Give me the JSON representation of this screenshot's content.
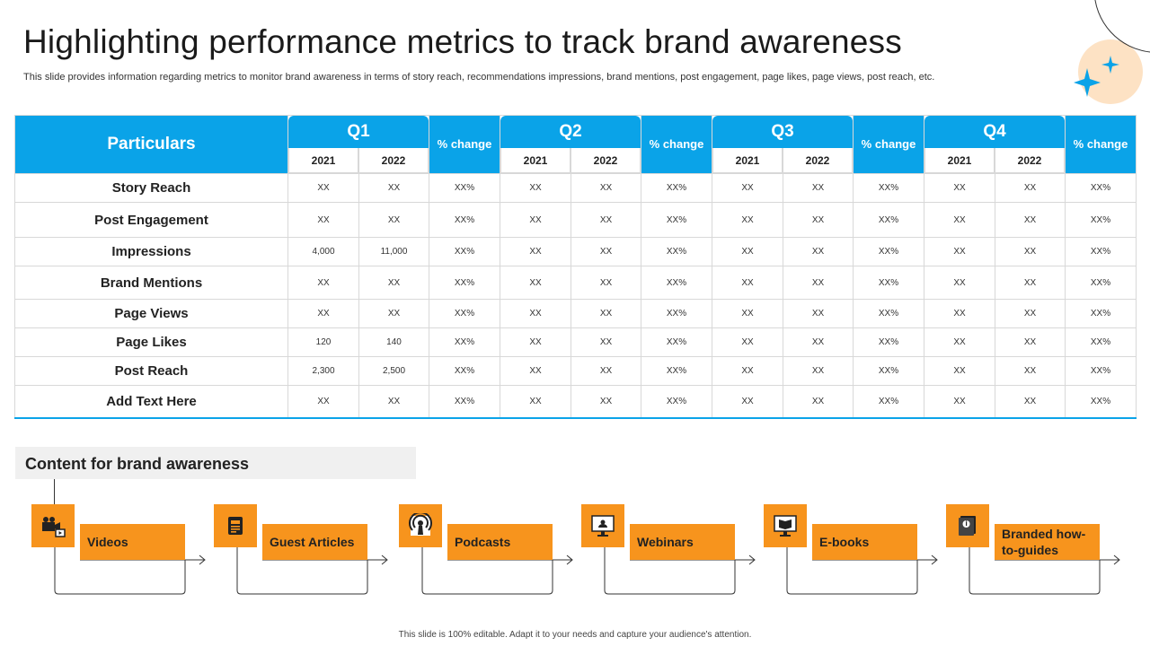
{
  "title": "Highlighting performance metrics to track brand awareness",
  "subtitle": "This slide provides information regarding metrics to monitor brand awareness in terms of story reach, recommendations impressions, brand mentions, post engagement, page likes, page views, post reach, etc.",
  "colors": {
    "accent": "#0aa3e8",
    "orange": "#f7941d",
    "peach": "#fde2c4"
  },
  "table": {
    "particulars_label": "Particulars",
    "quarters": [
      {
        "label": "Q1",
        "years": [
          "2021",
          "2022"
        ],
        "pct_label": "% change"
      },
      {
        "label": "Q2",
        "years": [
          "2021",
          "2022"
        ],
        "pct_label": "% change"
      },
      {
        "label": "Q3",
        "years": [
          "2021",
          "2022"
        ],
        "pct_label": "% change"
      },
      {
        "label": "Q4",
        "years": [
          "2021",
          "2022"
        ],
        "pct_label": "% change"
      }
    ],
    "rows": [
      {
        "label": "Story Reach",
        "values": [
          "XX",
          "XX",
          "XX%",
          "XX",
          "XX",
          "XX%",
          "XX",
          "XX",
          "XX%",
          "XX",
          "XX",
          "XX%"
        ]
      },
      {
        "label": "Post Engagement",
        "values": [
          "XX",
          "XX",
          "XX%",
          "XX",
          "XX",
          "XX%",
          "XX",
          "XX",
          "XX%",
          "XX",
          "XX",
          "XX%"
        ]
      },
      {
        "label": "Impressions",
        "values": [
          "4,000",
          "11,000",
          "XX%",
          "XX",
          "XX",
          "XX%",
          "XX",
          "XX",
          "XX%",
          "XX",
          "XX",
          "XX%"
        ]
      },
      {
        "label": "Brand  Mentions",
        "values": [
          "XX",
          "XX",
          "XX%",
          "XX",
          "XX",
          "XX%",
          "XX",
          "XX",
          "XX%",
          "XX",
          "XX",
          "XX%"
        ]
      },
      {
        "label": "Page Views",
        "values": [
          "XX",
          "XX",
          "XX%",
          "XX",
          "XX",
          "XX%",
          "XX",
          "XX",
          "XX%",
          "XX",
          "XX",
          "XX%"
        ]
      },
      {
        "label": "Page Likes",
        "values": [
          "120",
          "140",
          "XX%",
          "XX",
          "XX",
          "XX%",
          "XX",
          "XX",
          "XX%",
          "XX",
          "XX",
          "XX%"
        ]
      },
      {
        "label": "Post Reach",
        "values": [
          "2,300",
          "2,500",
          "XX%",
          "XX",
          "XX",
          "XX%",
          "XX",
          "XX",
          "XX%",
          "XX",
          "XX",
          "XX%"
        ]
      },
      {
        "label": "Add Text Here",
        "values": [
          "XX",
          "XX",
          "XX%",
          "XX",
          "XX",
          "XX%",
          "XX",
          "XX",
          "XX%",
          "XX",
          "XX",
          "XX%"
        ]
      }
    ]
  },
  "content": {
    "title": "Content for brand awareness",
    "items": [
      {
        "label": "Videos",
        "icon": "video-camera-icon"
      },
      {
        "label": "Guest Articles",
        "icon": "article-icon"
      },
      {
        "label": "Podcasts",
        "icon": "podcast-icon"
      },
      {
        "label": "Webinars",
        "icon": "webinar-icon"
      },
      {
        "label": "E-books",
        "icon": "ebook-icon"
      },
      {
        "label": "Branded how-to-guides",
        "icon": "guide-book-icon"
      }
    ]
  },
  "footer": "This slide is 100% editable.  Adapt it to your needs and capture your audience's attention."
}
